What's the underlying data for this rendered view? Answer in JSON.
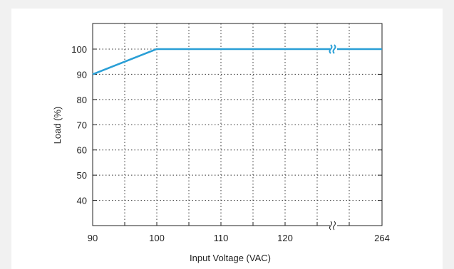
{
  "chart_data": {
    "type": "line",
    "xlabel": "Input Voltage (VAC)",
    "ylabel": "Load (%)",
    "x_ticks": [
      "90",
      "100",
      "110",
      "120",
      "264"
    ],
    "y_ticks": [
      "40",
      "50",
      "60",
      "70",
      "80",
      "90",
      "100"
    ],
    "ylim": [
      30,
      110
    ],
    "x_axis_break": "between 120 and 264",
    "grid": true,
    "series": [
      {
        "points": [
          {
            "x": 90,
            "y": 90
          },
          {
            "x": 100,
            "y": 100
          },
          {
            "x": 264,
            "y": 100
          }
        ]
      }
    ],
    "line_color": "#2a9fd6"
  }
}
